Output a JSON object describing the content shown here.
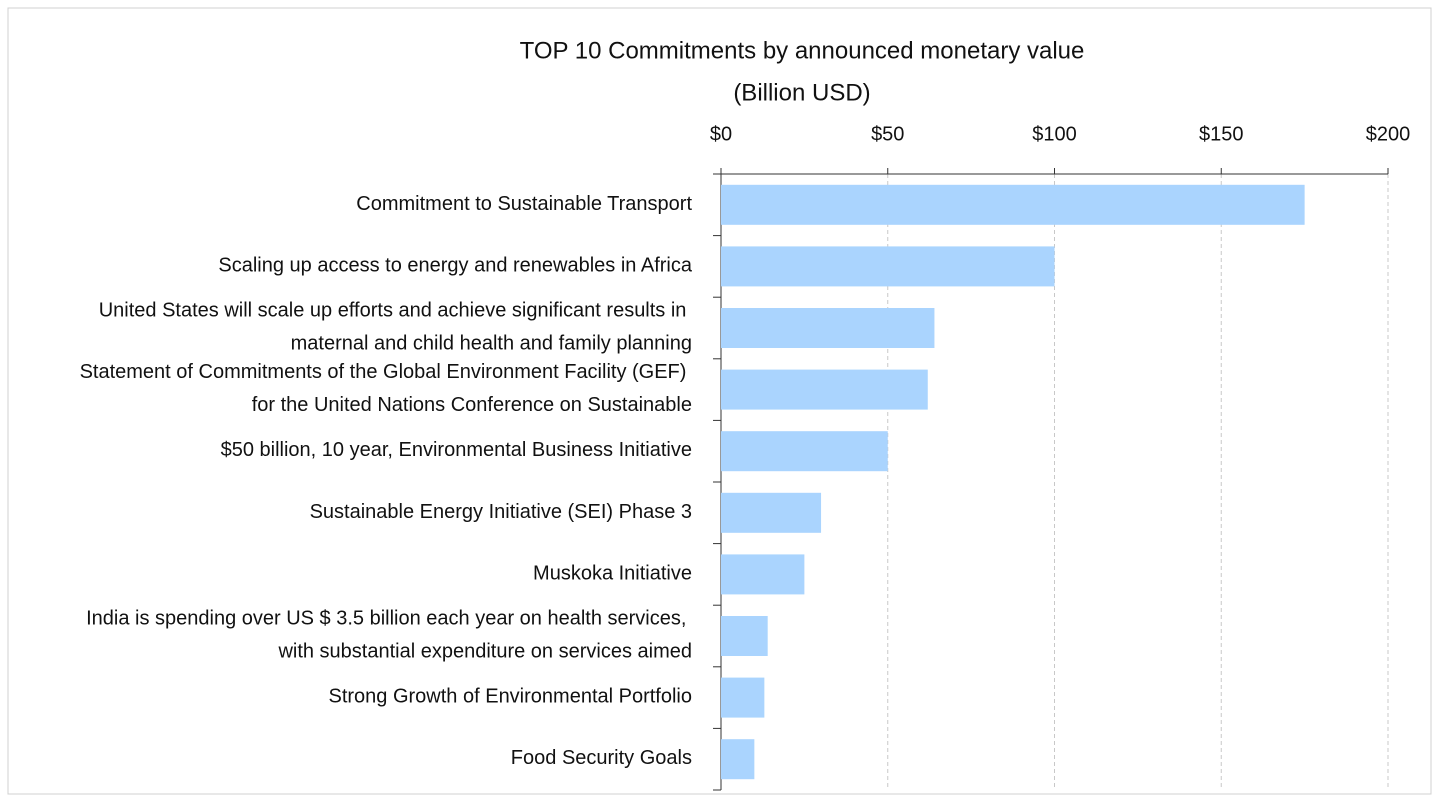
{
  "chart_data": {
    "type": "bar",
    "orientation": "horizontal",
    "title": "TOP 10 Commitments by announced monetary value",
    "subtitle": "(Billion USD)",
    "categories": [
      "Commitment to Sustainable Transport",
      "Scaling up access to energy and renewables in Africa",
      "United States will scale up efforts and achieve significant results in maternal and child health and family planning",
      "Statement of Commitments of the Global Environment Facility (GEF) for the United Nations Conference on Sustainable",
      "$50 billion, 10 year, Environmental Business Initiative",
      "Sustainable Energy Initiative (SEI) Phase 3",
      "Muskoka Initiative",
      "India is spending over US $ 3.5 billion each year on health services, with substantial expenditure on services aimed",
      "Strong Growth of Environmental Portfolio",
      "Food Security Goals"
    ],
    "values": [
      175,
      100,
      64,
      62,
      50,
      30,
      25,
      14,
      13,
      10
    ],
    "color": "#aad4fe",
    "xlim": [
      0,
      200
    ],
    "xticks": [
      {
        "value": 0,
        "label": "$0"
      },
      {
        "value": 50,
        "label": "$50"
      },
      {
        "value": 100,
        "label": "$100"
      },
      {
        "value": 150,
        "label": "$150"
      },
      {
        "value": 200,
        "label": "$200"
      }
    ],
    "grid": true
  }
}
